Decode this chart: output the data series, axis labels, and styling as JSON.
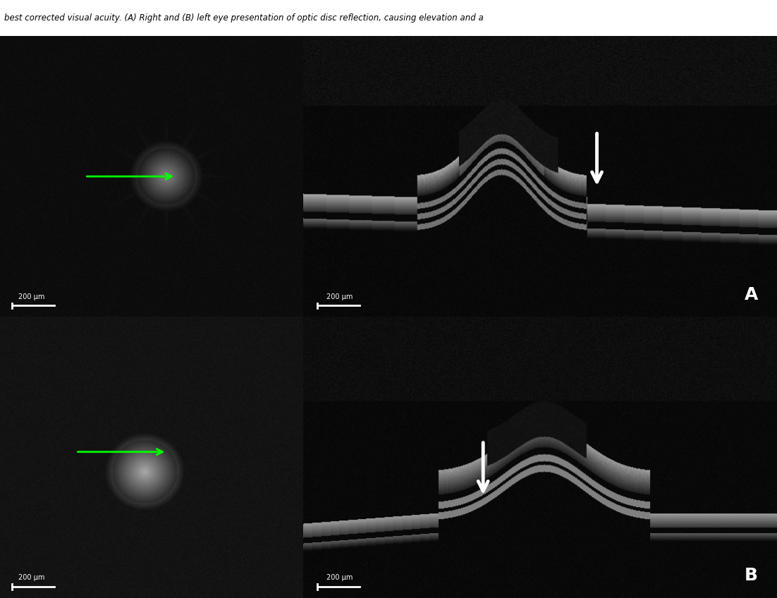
{
  "figsize": [
    11.02,
    8.48
  ],
  "dpi": 100,
  "background_color": "#ffffff",
  "label_A": "A",
  "label_B": "B",
  "scale_bar_text": "200 μm",
  "arrow_color_green": "#00ff00",
  "arrow_color_white": "#ffffff",
  "panel_bg": "#000000"
}
